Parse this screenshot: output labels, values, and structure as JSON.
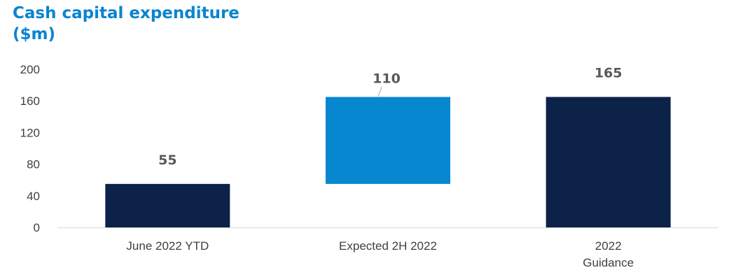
{
  "title_lines": [
    "Cash capital expenditure",
    "($m)"
  ],
  "colors": {
    "title": "#0a84cf",
    "dark_bar": "#0d2249",
    "light_bar": "#0787d0",
    "axis": "#d9d9d9",
    "text": "#404040",
    "data_label": "#595959"
  },
  "chart_data": {
    "type": "bar",
    "subtype": "waterfall",
    "title": "Cash capital expenditure ($m)",
    "xlabel": "",
    "ylabel": "",
    "ylim": [
      0,
      200
    ],
    "y_ticks": [
      "0",
      "40",
      "80",
      "120",
      "160",
      "200"
    ],
    "grid": false,
    "legend": "none",
    "categories": [
      [
        "June 2022 YTD"
      ],
      [
        "Expected 2H 2022"
      ],
      [
        "2022",
        "Guidance"
      ]
    ],
    "bars": [
      {
        "base": 0,
        "value": 55,
        "label": "55",
        "color": "#0d2249"
      },
      {
        "base": 55,
        "value": 110,
        "label": "110",
        "color": "#0787d0"
      },
      {
        "base": 0,
        "value": 165,
        "label": "165",
        "color": "#0d2249"
      }
    ]
  }
}
